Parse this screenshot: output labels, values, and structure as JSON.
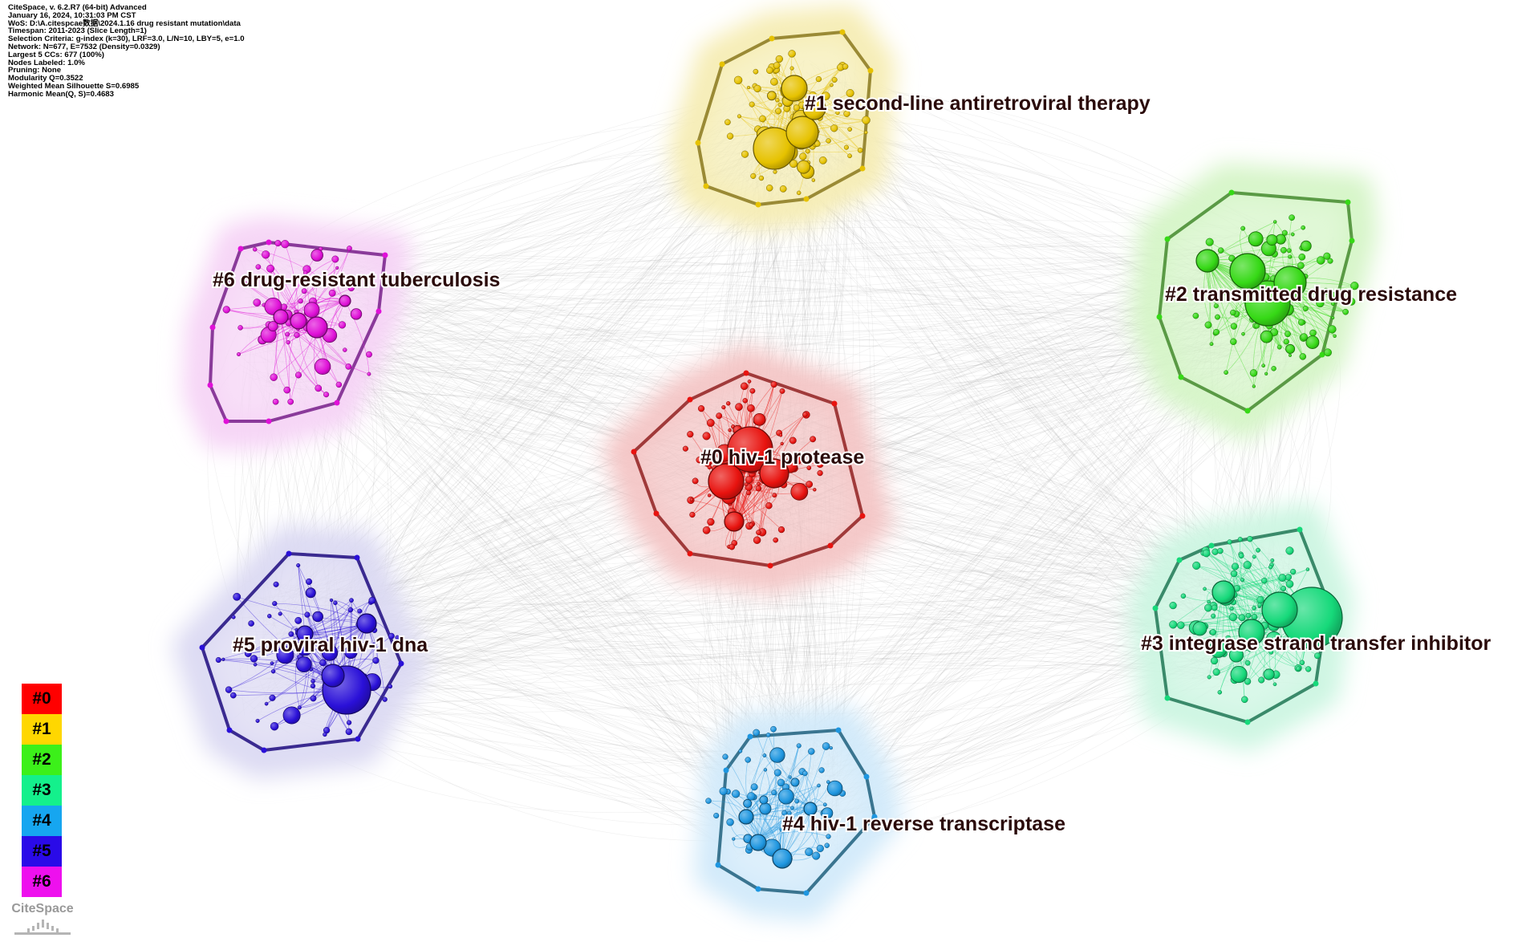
{
  "header_info": [
    "CiteSpace, v. 6.2.R7 (64-bit) Advanced",
    "January 16, 2024, 10:31:03 PM CST",
    "WoS: D:\\A.citespcae数据\\2024.1.16 drug resistant mutation\\data",
    "Timespan: 2011-2023 (Slice Length=1)",
    "Selection Criteria: g-index (k=30), LRF=3.0, L/N=10, LBY=5, e=1.0",
    "Network: N=677, E=7532 (Density=0.0329)",
    "Largest 5 CCs: 677 (100%)",
    "Nodes Labeled: 1.0%",
    "Pruning: None",
    "Modularity Q=0.3522",
    "Weighted Mean Silhouette S=0.6985",
    "Harmonic Mean(Q, S)=0.4683"
  ],
  "clusters": [
    {
      "id": "#0",
      "label": "#0 hiv-1 protease",
      "color": "#e8130f",
      "hull": "#a03a3a",
      "halo": "#f4c6c6"
    },
    {
      "id": "#1",
      "label": "#1 second-line antiretroviral therapy",
      "color": "#e6c200",
      "hull": "#9a8a35",
      "halo": "#f6edb5"
    },
    {
      "id": "#2",
      "label": "#2 transmitted drug resistance",
      "color": "#36d916",
      "hull": "#5a9a45",
      "halo": "#d6f5c8"
    },
    {
      "id": "#3",
      "label": "#3 integrase strand transfer inhibitor",
      "color": "#16d97a",
      "hull": "#3a8a6a",
      "halo": "#cdf6e2"
    },
    {
      "id": "#4",
      "label": "#4 hiv-1 reverse transcriptase",
      "color": "#1e96e0",
      "hull": "#3a7590",
      "halo": "#d2eafa"
    },
    {
      "id": "#5",
      "label": "#5 proviral hiv-1 dna",
      "color": "#2a10d8",
      "hull": "#3a2a90",
      "halo": "#dcdaf3"
    },
    {
      "id": "#6",
      "label": "#6 drug-resistant tuberculosis",
      "color": "#e010d8",
      "hull": "#8a3a9a",
      "halo": "#f6d4f6"
    }
  ],
  "legend": [
    {
      "label": "#0",
      "color": "#ff0000"
    },
    {
      "label": "#1",
      "color": "#ffd700"
    },
    {
      "label": "#2",
      "color": "#3cf01a"
    },
    {
      "label": "#3",
      "color": "#14f08c"
    },
    {
      "label": "#4",
      "color": "#16a6f0"
    },
    {
      "label": "#5",
      "color": "#2a0ae8"
    },
    {
      "label": "#6",
      "color": "#ee10ee"
    }
  ],
  "logo_text": "CiteSpace"
}
